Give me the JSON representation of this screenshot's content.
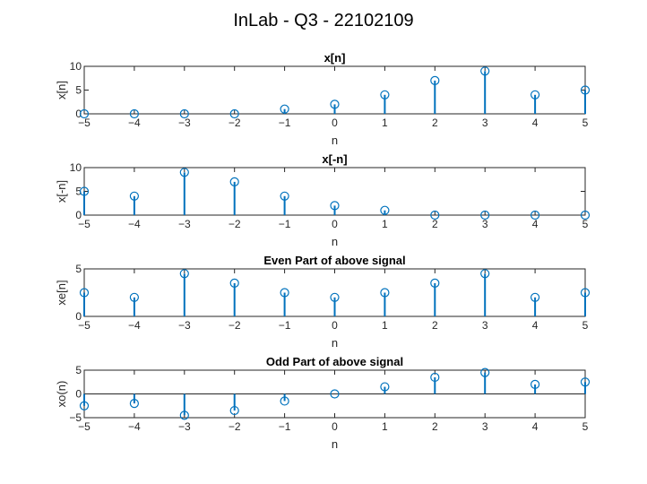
{
  "figure": {
    "suptitle": "InLab - Q3 - 22102109"
  },
  "chart_data": [
    {
      "type": "stem",
      "title": "x[n]",
      "xlabel": "n",
      "ylabel": "x[n]",
      "x": [
        -5,
        -4,
        -3,
        -2,
        -1,
        0,
        1,
        2,
        3,
        4,
        5
      ],
      "y": [
        0,
        0,
        0,
        0,
        1,
        2,
        4,
        7,
        9,
        4,
        5
      ],
      "xlim": [
        -5,
        5
      ],
      "ylim": [
        0,
        10
      ],
      "yticks": [
        0,
        5,
        10
      ],
      "xticks": [
        -5,
        -4,
        -3,
        -2,
        -1,
        0,
        1,
        2,
        3,
        4,
        5
      ],
      "color": "#0072BD"
    },
    {
      "type": "stem",
      "title": "x[-n]",
      "xlabel": "n",
      "ylabel": "x[-n]",
      "x": [
        -5,
        -4,
        -3,
        -2,
        -1,
        0,
        1,
        2,
        3,
        4,
        5
      ],
      "y": [
        5,
        4,
        9,
        7,
        4,
        2,
        1,
        0,
        0,
        0,
        0
      ],
      "xlim": [
        -5,
        5
      ],
      "ylim": [
        0,
        10
      ],
      "yticks": [
        0,
        5,
        10
      ],
      "xticks": [
        -5,
        -4,
        -3,
        -2,
        -1,
        0,
        1,
        2,
        3,
        4,
        5
      ],
      "color": "#0072BD"
    },
    {
      "type": "stem",
      "title": "Even Part of above signal",
      "xlabel": "n",
      "ylabel": "xe[n]",
      "x": [
        -5,
        -4,
        -3,
        -2,
        -1,
        0,
        1,
        2,
        3,
        4,
        5
      ],
      "y": [
        2.5,
        2,
        4.5,
        3.5,
        2.5,
        2,
        2.5,
        3.5,
        4.5,
        2,
        2.5
      ],
      "xlim": [
        -5,
        5
      ],
      "ylim": [
        0,
        5
      ],
      "yticks": [
        0,
        5
      ],
      "xticks": [
        -5,
        -4,
        -3,
        -2,
        -1,
        0,
        1,
        2,
        3,
        4,
        5
      ],
      "color": "#0072BD"
    },
    {
      "type": "stem",
      "title": "Odd Part of above signal",
      "xlabel": "n",
      "ylabel": "xo(n)",
      "x": [
        -5,
        -4,
        -3,
        -2,
        -1,
        0,
        1,
        2,
        3,
        4,
        5
      ],
      "y": [
        -2.5,
        -2,
        -4.5,
        -3.5,
        -1.5,
        0,
        1.5,
        3.5,
        4.5,
        2,
        2.5
      ],
      "xlim": [
        -5,
        5
      ],
      "ylim": [
        -5,
        5
      ],
      "yticks": [
        -5,
        0,
        5
      ],
      "xticks": [
        -5,
        -4,
        -3,
        -2,
        -1,
        0,
        1,
        2,
        3,
        4,
        5
      ],
      "color": "#0072BD"
    }
  ]
}
